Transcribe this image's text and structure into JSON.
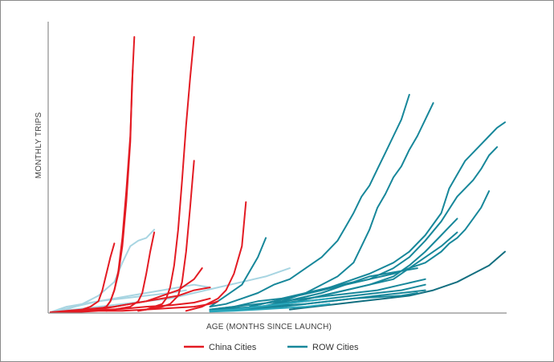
{
  "chart_data": {
    "type": "line",
    "title": "",
    "xlabel": "AGE (MONTHS SINCE LAUNCH)",
    "ylabel": "MONTHLY TRIPS",
    "x_unit": "months since launch",
    "xlim": [
      0,
      57
    ],
    "ylim": [
      0,
      100
    ],
    "axis_ticks_shown": false,
    "grid": false,
    "legend_position": "bottom-center",
    "legend": [
      {
        "label": "China Cities",
        "color": "#e31b23"
      },
      {
        "label": "ROW Cities",
        "color": "#17879a"
      }
    ],
    "series": [
      {
        "group": "China Cities",
        "color": "#e31b23",
        "x": [
          5,
          6,
          7,
          7.5,
          8,
          8.5,
          9,
          9.5,
          10,
          10.2,
          10.5
        ],
        "y": [
          0.5,
          1,
          2,
          4,
          8,
          14,
          24,
          40,
          62,
          82,
          100
        ]
      },
      {
        "group": "China Cities",
        "color": "#e31b23",
        "x": [
          5,
          6,
          7,
          7.5,
          8,
          8.5,
          9,
          9.5,
          10,
          10.3
        ],
        "y": [
          0.5,
          1,
          2,
          4,
          8,
          15,
          27,
          44,
          64,
          88
        ]
      },
      {
        "group": "China Cities",
        "color": "#e31b23",
        "x": [
          3,
          4,
          5,
          6,
          6.5,
          7,
          7.5,
          8
        ],
        "y": [
          0.5,
          1,
          2,
          4,
          8,
          14,
          20,
          25
        ]
      },
      {
        "group": "China Cities",
        "color": "#e31b23",
        "x": [
          7,
          8,
          9,
          10,
          11,
          11.5,
          12,
          12.5,
          13
        ],
        "y": [
          0.5,
          1,
          1.5,
          2,
          4,
          7,
          14,
          22,
          29
        ]
      },
      {
        "group": "China Cities",
        "color": "#e31b23",
        "x": [
          11,
          12,
          13,
          14,
          14.5,
          15,
          15.5,
          16,
          16.5,
          17,
          17.5,
          18
        ],
        "y": [
          0.5,
          1,
          2,
          3,
          5,
          9,
          17,
          30,
          48,
          68,
          85,
          100
        ]
      },
      {
        "group": "China Cities",
        "color": "#e31b23",
        "x": [
          11,
          12,
          13,
          14,
          15,
          16,
          16.5,
          17,
          17.5,
          18
        ],
        "y": [
          0.5,
          1,
          1.5,
          2,
          3,
          6,
          11,
          22,
          38,
          55
        ]
      },
      {
        "group": "China Cities",
        "color": "#e31b23",
        "x": [
          17,
          19,
          21,
          22,
          23,
          24,
          24.5
        ],
        "y": [
          0.5,
          2,
          5,
          8,
          14,
          24,
          40
        ]
      },
      {
        "group": "China Cities",
        "color": "#e31b23",
        "x": [
          0,
          2,
          4,
          6,
          8,
          10,
          12,
          14,
          16,
          18,
          20
        ],
        "y": [
          0,
          0.5,
          1,
          1.5,
          2,
          3,
          4,
          5,
          6,
          8,
          9
        ]
      },
      {
        "group": "China Cities",
        "color": "#e31b23",
        "x": [
          2,
          4,
          6,
          8,
          10,
          12,
          14,
          16,
          18,
          19
        ],
        "y": [
          0,
          0.5,
          1,
          2,
          3,
          4,
          6,
          8,
          12,
          16
        ]
      },
      {
        "group": "China Cities",
        "color": "#e31b23",
        "x": [
          0,
          3,
          6,
          9,
          12,
          15,
          18,
          20,
          21
        ],
        "y": [
          0,
          0,
          0.5,
          0.5,
          1,
          1.5,
          2,
          3,
          4
        ]
      },
      {
        "group": "China Cities",
        "color": "#e31b23",
        "x": [
          0,
          3,
          6,
          9,
          12,
          15,
          18,
          20
        ],
        "y": [
          0,
          0.3,
          0.8,
          1.2,
          2,
          2.5,
          3.5,
          5
        ]
      },
      {
        "group": "ROW Cities",
        "color": "#a8d5e2",
        "x": [
          2,
          4,
          6,
          8,
          9,
          10,
          11,
          12,
          13
        ],
        "y": [
          1,
          3,
          6,
          11,
          18,
          24,
          26,
          27,
          30
        ]
      },
      {
        "group": "ROW Cities",
        "color": "#a8d5e2",
        "x": [
          0,
          2,
          4,
          6,
          8,
          10,
          12,
          14,
          16,
          18,
          20
        ],
        "y": [
          0,
          2,
          3,
          4,
          5,
          6,
          7,
          8,
          9,
          10,
          9
        ]
      },
      {
        "group": "ROW Cities",
        "color": "#a8d5e2",
        "x": [
          0,
          3,
          6,
          9,
          12,
          15,
          17
        ],
        "y": [
          0,
          2,
          4,
          5,
          6,
          7,
          8
        ]
      },
      {
        "group": "ROW Cities",
        "color": "#a8d5e2",
        "x": [
          0,
          3,
          6,
          9,
          12,
          15,
          18,
          21,
          24,
          27,
          30
        ],
        "y": [
          0,
          1,
          2,
          3,
          4,
          5,
          7,
          9,
          11,
          13,
          16
        ]
      },
      {
        "group": "ROW Cities",
        "color": "#17879a",
        "x": [
          20,
          22,
          24,
          25,
          26,
          27
        ],
        "y": [
          2,
          6,
          10,
          15,
          20,
          27
        ]
      },
      {
        "group": "ROW Cities",
        "color": "#17879a",
        "x": [
          20,
          22,
          24,
          26,
          28,
          30,
          32,
          34,
          36,
          37,
          38,
          39,
          40,
          41,
          42,
          43,
          44,
          45
        ],
        "y": [
          2,
          3,
          5,
          7,
          10,
          12,
          16,
          20,
          26,
          31,
          36,
          42,
          46,
          52,
          58,
          64,
          70,
          79
        ]
      },
      {
        "group": "ROW Cities",
        "color": "#17879a",
        "x": [
          28,
          30,
          32,
          34,
          36,
          38,
          39,
          40,
          41,
          42,
          43,
          44,
          45,
          46,
          47,
          48
        ],
        "y": [
          3,
          5,
          7,
          10,
          13,
          18,
          24,
          30,
          38,
          43,
          49,
          53,
          59,
          64,
          70,
          76
        ]
      },
      {
        "group": "ROW Cities",
        "color": "#17879a",
        "x": [
          25,
          28,
          31,
          34,
          37,
          40,
          43,
          45,
          47,
          49,
          50,
          51,
          52,
          53,
          54,
          55,
          56,
          57
        ],
        "y": [
          2,
          4,
          6,
          8,
          11,
          14,
          18,
          22,
          28,
          36,
          45,
          50,
          55,
          58,
          61,
          64,
          67,
          69
        ]
      },
      {
        "group": "ROW Cities",
        "color": "#17879a",
        "x": [
          25,
          28,
          31,
          34,
          37,
          40,
          43,
          45,
          47,
          49,
          51,
          53,
          54,
          55,
          56
        ],
        "y": [
          1,
          3,
          5,
          7,
          10,
          12,
          16,
          20,
          26,
          33,
          42,
          48,
          52,
          57,
          60
        ]
      },
      {
        "group": "ROW Cities",
        "color": "#17879a",
        "x": [
          25,
          28,
          31,
          34,
          37,
          40,
          43,
          45,
          47,
          49,
          50,
          51,
          52,
          53,
          54,
          55
        ],
        "y": [
          2,
          4,
          6,
          8,
          10,
          12,
          14,
          16,
          18,
          22,
          25,
          27,
          30,
          34,
          38,
          44
        ]
      },
      {
        "group": "ROW Cities",
        "color": "#17879a",
        "x": [
          25,
          28,
          31,
          34,
          37,
          40,
          43,
          45,
          47,
          49,
          51
        ],
        "y": [
          1,
          3,
          4,
          6,
          8,
          10,
          13,
          17,
          22,
          28,
          34
        ]
      },
      {
        "group": "ROW Cities",
        "color": "#17879a",
        "x": [
          25,
          28,
          31,
          34,
          37,
          40,
          43,
          45,
          47,
          49,
          51
        ],
        "y": [
          1,
          2,
          4,
          6,
          8,
          10,
          12,
          16,
          20,
          24,
          29
        ]
      },
      {
        "group": "ROW Cities",
        "color": "#17879a",
        "x": [
          20,
          23,
          26,
          29,
          32,
          35,
          38,
          40,
          42,
          44,
          46
        ],
        "y": [
          1,
          2,
          4,
          5,
          7,
          9,
          11,
          13,
          14,
          15,
          16
        ]
      },
      {
        "group": "ROW Cities",
        "color": "#17879a",
        "x": [
          20,
          23,
          26,
          29,
          32,
          35,
          38,
          41,
          44,
          47
        ],
        "y": [
          1,
          2,
          3,
          4,
          5,
          6,
          7,
          8,
          10,
          12
        ]
      },
      {
        "group": "ROW Cities",
        "color": "#136f80",
        "x": [
          30,
          33,
          36,
          39,
          42,
          45,
          48,
          51,
          53,
          55,
          57
        ],
        "y": [
          1,
          2,
          3,
          4,
          5,
          6,
          8,
          11,
          14,
          17,
          22
        ]
      },
      {
        "group": "ROW Cities",
        "color": "#17879a",
        "x": [
          20,
          23,
          26,
          29,
          32,
          35,
          38,
          41,
          44,
          47
        ],
        "y": [
          1,
          1.5,
          2,
          3,
          4,
          5,
          6,
          7,
          8,
          10
        ]
      },
      {
        "group": "ROW Cities",
        "color": "#17879a",
        "x": [
          20,
          23,
          26,
          29,
          32,
          35,
          38,
          41,
          44,
          47
        ],
        "y": [
          0.5,
          1,
          1.5,
          2,
          3,
          4,
          5,
          6,
          7,
          8
        ]
      },
      {
        "group": "ROW Cities",
        "color": "#17879a",
        "x": [
          20,
          23,
          26,
          29,
          32,
          35,
          38,
          41,
          44,
          46
        ],
        "y": [
          0.5,
          1,
          2,
          2.5,
          3,
          4,
          5,
          5.5,
          6,
          7
        ]
      },
      {
        "group": "ROW Cities",
        "color": "#2aa6ba",
        "x": [
          20,
          23,
          26,
          29,
          32,
          35
        ],
        "y": [
          0.5,
          1,
          2,
          3,
          4,
          5
        ]
      },
      {
        "group": "ROW Cities",
        "color": "#2aa6ba",
        "x": [
          20,
          23,
          26,
          29,
          32,
          35
        ],
        "y": [
          0.2,
          0.5,
          1,
          1.5,
          2,
          3
        ]
      }
    ]
  }
}
